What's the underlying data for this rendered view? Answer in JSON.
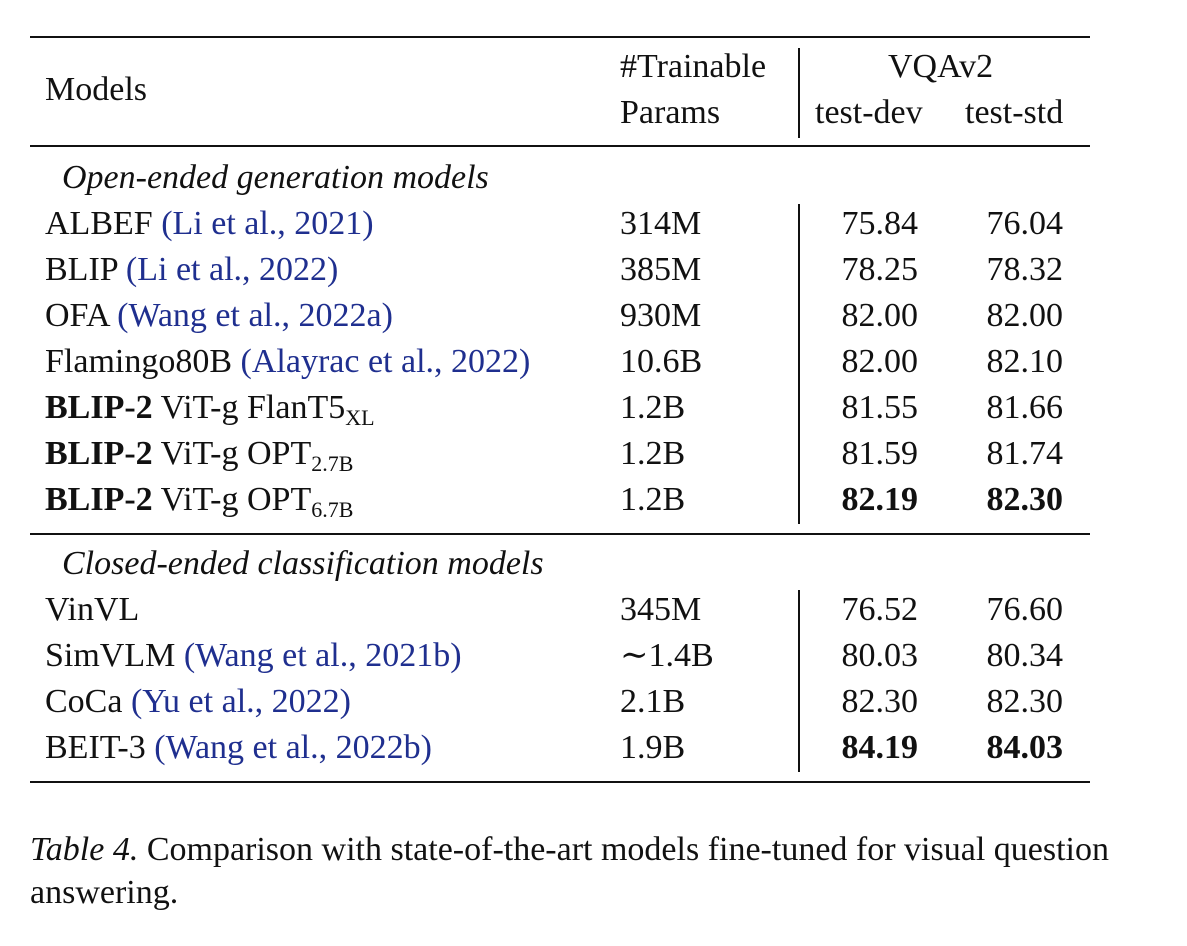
{
  "header": {
    "models": "Models",
    "params_line1": "#Trainable",
    "params_line2": "Params",
    "group": "VQAv2",
    "test_dev": "test-dev",
    "test_std": "test-std"
  },
  "sections": [
    {
      "title": "Open-ended generation models",
      "rows": [
        {
          "name": "ALBEF",
          "cite": "(Li et al., 2021)",
          "params": "314M",
          "dev": "75.84",
          "std": "76.04"
        },
        {
          "name": "BLIP",
          "cite": "(Li et al., 2022)",
          "params": "385M",
          "dev": "78.25",
          "std": "78.32"
        },
        {
          "name": "OFA",
          "cite": "(Wang et al., 2022a)",
          "params": "930M",
          "dev": "82.00",
          "std": "82.00"
        },
        {
          "name": "Flamingo80B",
          "cite": "(Alayrac et al., 2022)",
          "params": "10.6B",
          "dev": "82.00",
          "std": "82.10"
        },
        {
          "name_bold": "BLIP-2",
          "name_rest": "ViT-g FlanT5",
          "name_sub": "XL",
          "params": "1.2B",
          "dev": "81.55",
          "std": "81.66"
        },
        {
          "name_bold": "BLIP-2",
          "name_rest": "ViT-g OPT",
          "name_sub": "2.7B",
          "params": "1.2B",
          "dev": "81.59",
          "std": "81.74"
        },
        {
          "name_bold": "BLIP-2",
          "name_rest": "ViT-g OPT",
          "name_sub": "6.7B",
          "params": "1.2B",
          "dev": "82.19",
          "std": "82.30",
          "best": true
        }
      ]
    },
    {
      "title": "Closed-ended classification models",
      "rows": [
        {
          "name": "VinVL",
          "cite": "",
          "params": "345M",
          "dev": "76.52",
          "std": "76.60"
        },
        {
          "name": "SimVLM",
          "cite": "(Wang et al., 2021b)",
          "params": "∼1.4B",
          "dev": "80.03",
          "std": "80.34"
        },
        {
          "name": "CoCa",
          "cite": "(Yu et al., 2022)",
          "params": "2.1B",
          "dev": "82.30",
          "std": "82.30"
        },
        {
          "name": "BEIT-3",
          "cite": "(Wang et al., 2022b)",
          "params": "1.9B",
          "dev": "84.19",
          "std": "84.03",
          "best": true
        }
      ]
    }
  ],
  "caption": {
    "label": "Table 4.",
    "text": "Comparison with state-of-the-art models fine-tuned for visual question answering."
  }
}
